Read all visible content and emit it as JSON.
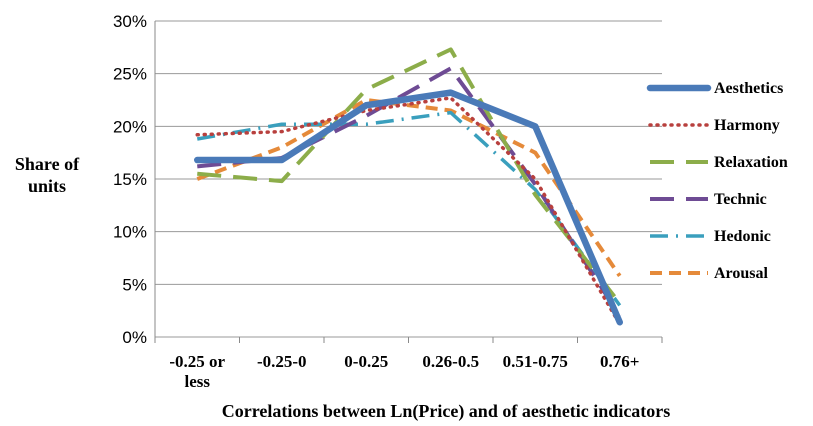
{
  "chart_data": {
    "type": "line",
    "categories": [
      "-0.25 or less",
      "-0.25-0",
      "0-0.25",
      "0.26-0.5",
      "0.51-0.75",
      "0.76+"
    ],
    "category_lines": [
      [
        "-0.25 or",
        "less"
      ],
      [
        "-0.25-0"
      ],
      [
        "0-0.25"
      ],
      [
        "0.26-0.5"
      ],
      [
        "0.51-0.75"
      ],
      [
        "0.76+"
      ]
    ],
    "xlabel": "Correlations between Ln(Price) and of aesthetic indicators",
    "ylabel_lines": [
      "Share of",
      "units"
    ],
    "ylim": [
      0,
      30
    ],
    "yticks": [
      0,
      5,
      10,
      15,
      20,
      25,
      30
    ],
    "ytick_labels": [
      "0%",
      "5%",
      "10%",
      "15%",
      "20%",
      "25%",
      "30%"
    ],
    "grid": "horizontal",
    "legend_position": "right",
    "series": [
      {
        "name": "Aesthetics",
        "values": [
          16.8,
          16.8,
          22.0,
          23.2,
          20.0,
          1.4
        ],
        "color": "#4a7ab8",
        "style": "solid-thick"
      },
      {
        "name": "Harmony",
        "values": [
          19.2,
          19.5,
          21.5,
          22.7,
          15.0,
          1.2
        ],
        "color": "#b8403e",
        "style": "dotted"
      },
      {
        "name": "Relaxation",
        "values": [
          15.5,
          14.8,
          23.5,
          27.3,
          13.5,
          3.2
        ],
        "color": "#8cad4a",
        "style": "dashed-long"
      },
      {
        "name": "Technic",
        "values": [
          16.2,
          17.0,
          21.0,
          25.5,
          14.5,
          2.0
        ],
        "color": "#6e4b94",
        "style": "dashed-long"
      },
      {
        "name": "Hedonic",
        "values": [
          18.8,
          20.2,
          20.2,
          21.3,
          14.0,
          3.0
        ],
        "color": "#3a9fbd",
        "style": "dashdot"
      },
      {
        "name": "Arousal",
        "values": [
          15.0,
          18.0,
          22.5,
          21.5,
          17.5,
          5.8
        ],
        "color": "#e58a3a",
        "style": "dashed"
      }
    ]
  }
}
